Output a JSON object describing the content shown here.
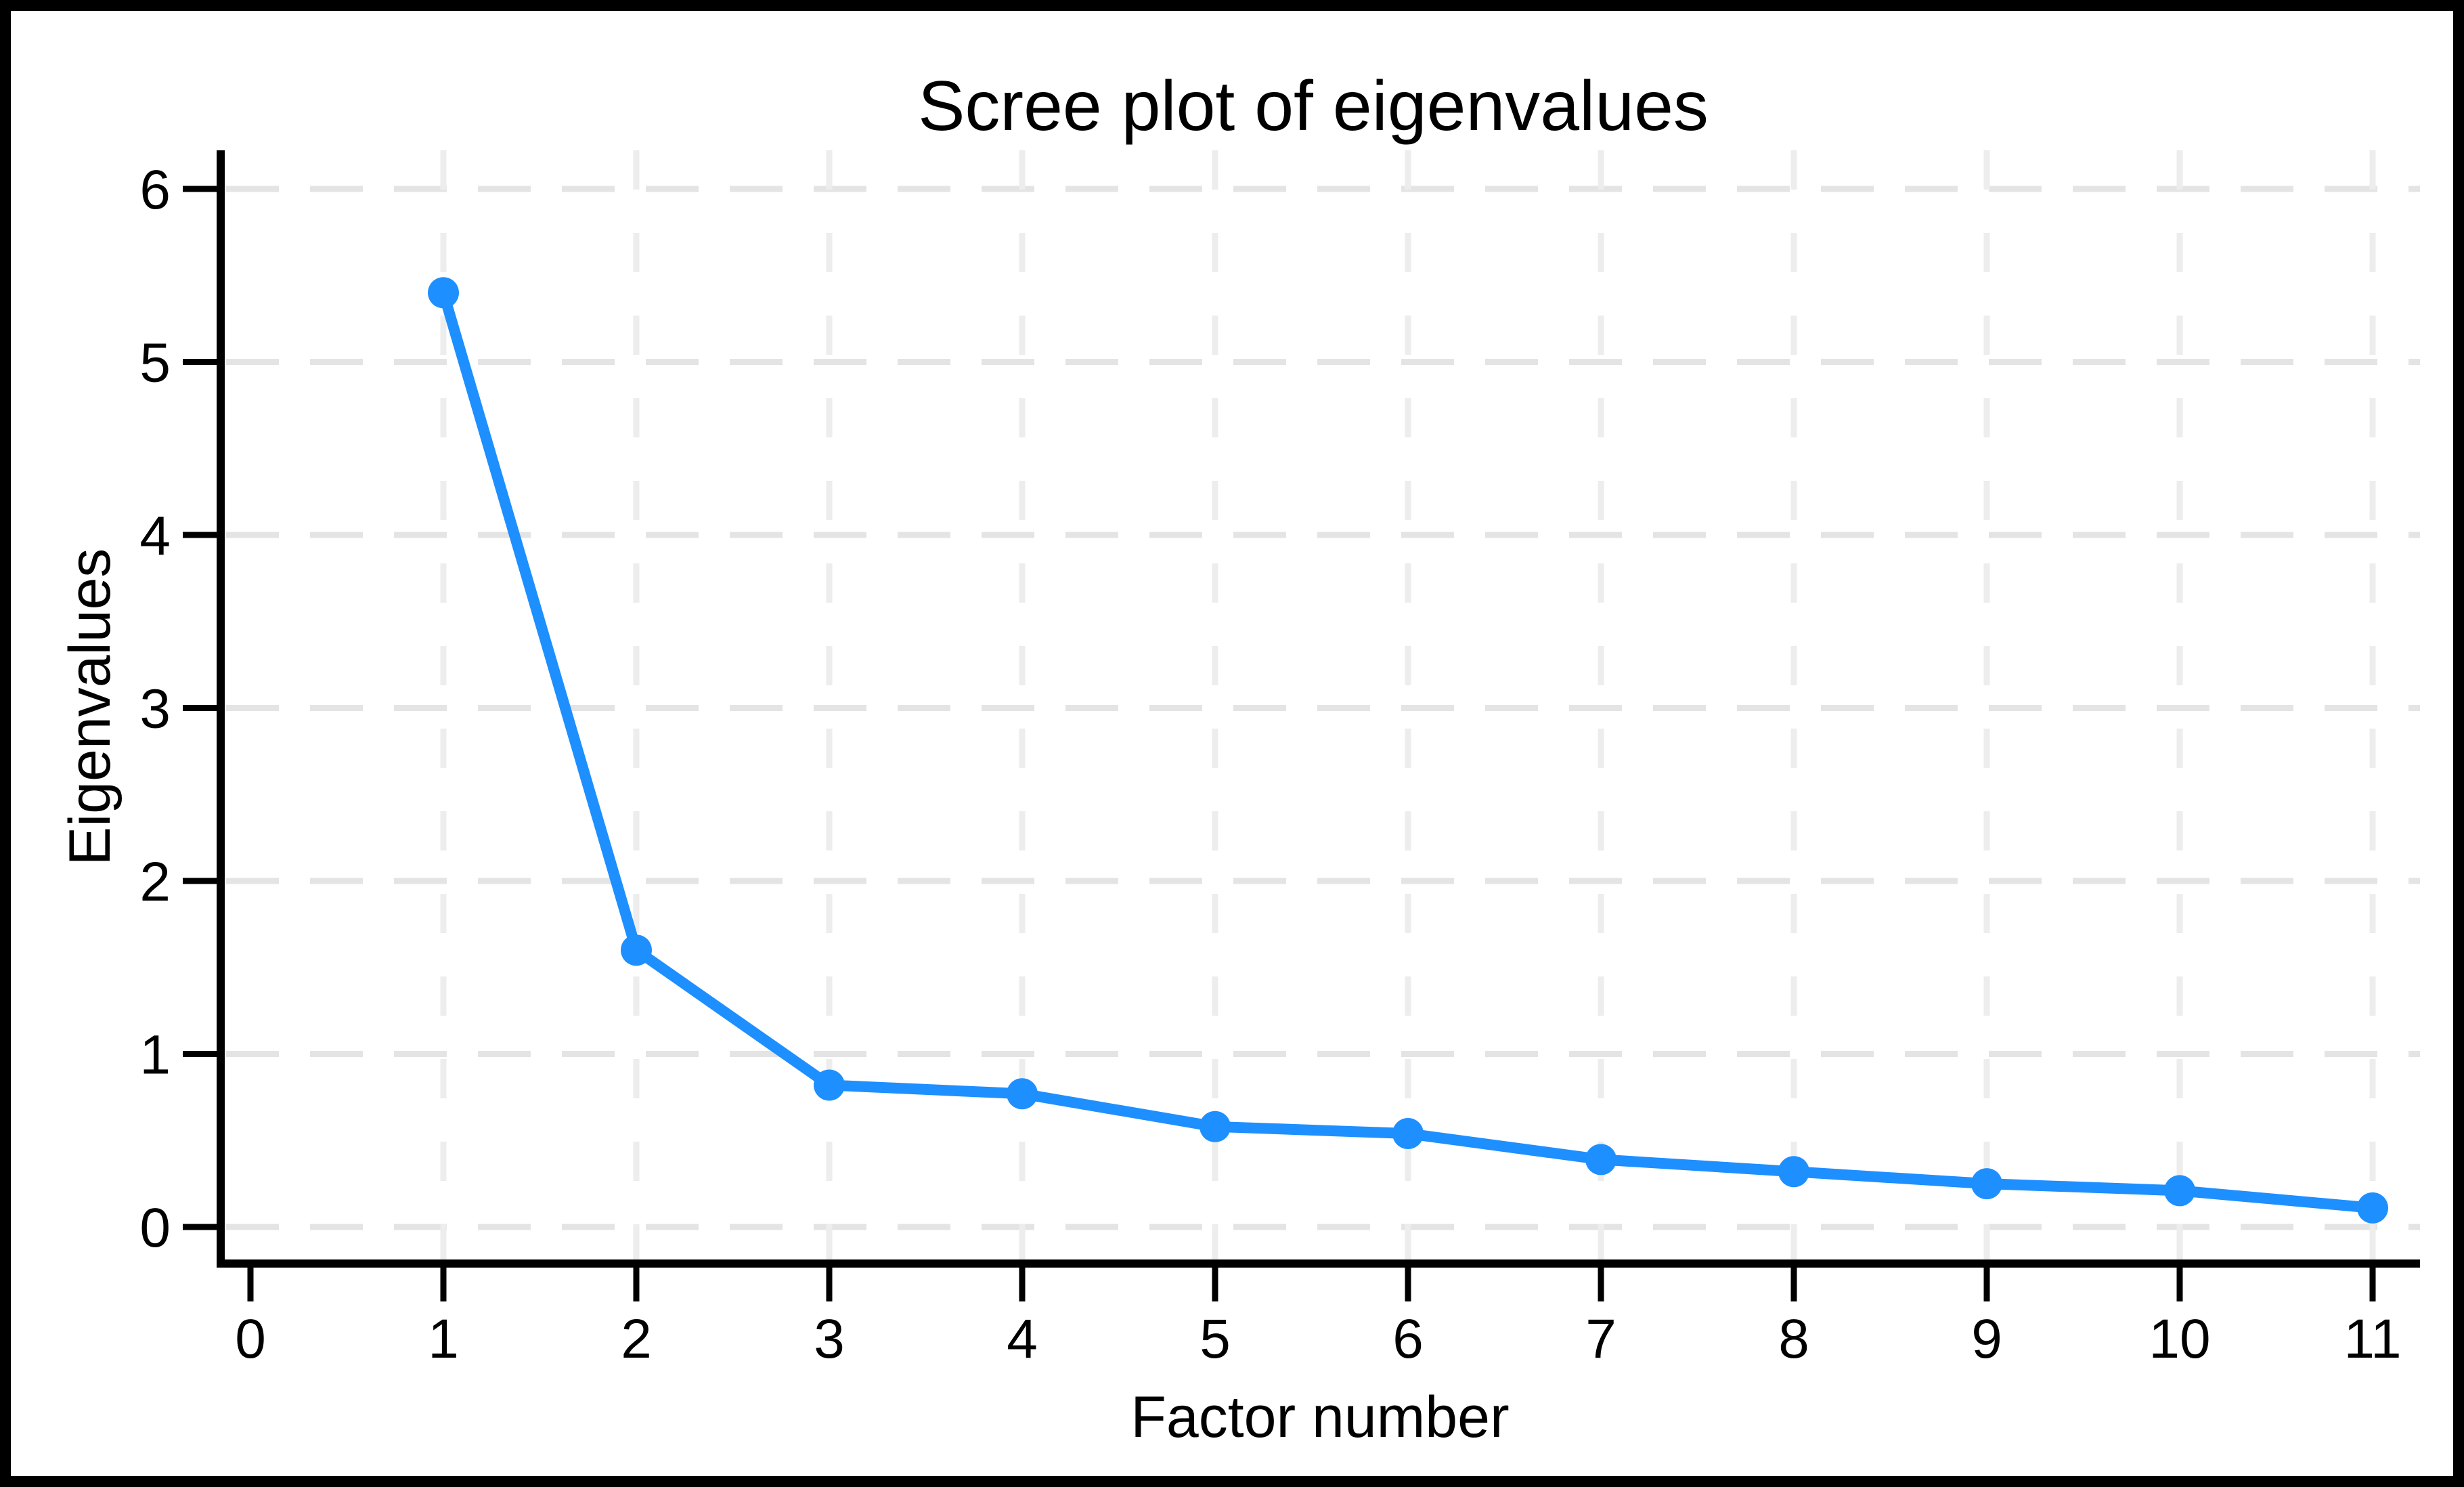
{
  "figure": {
    "background": "#FFFFFF",
    "border_color": "#000000"
  },
  "chart_data": {
    "type": "line",
    "title": "Scree plot of eigenvalues",
    "xlabel": "Factor number",
    "ylabel": "Eigenvalues",
    "x": [
      1,
      2,
      3,
      4,
      5,
      6,
      7,
      8,
      9,
      10,
      11
    ],
    "values": [
      5.4,
      1.6,
      0.82,
      0.77,
      0.58,
      0.54,
      0.39,
      0.32,
      0.25,
      0.21,
      0.11
    ],
    "x_ticks": [
      0,
      1,
      2,
      3,
      4,
      5,
      6,
      7,
      8,
      9,
      10,
      11
    ],
    "y_ticks": [
      0,
      1,
      2,
      3,
      4,
      5,
      6
    ],
    "xlim": [
      0,
      11.25
    ],
    "ylim": [
      0,
      6.2
    ],
    "grid": "dashed horizontal and vertical gridlines",
    "legend": "none",
    "line_color": "#1E8FFF",
    "marker": "circle",
    "marker_color": "#1E8FFF",
    "grid_color_horizontal": "#E4E4E4",
    "grid_color_vertical": "#EDEDED",
    "axis_color": "#000000",
    "text_color": "#000000"
  }
}
